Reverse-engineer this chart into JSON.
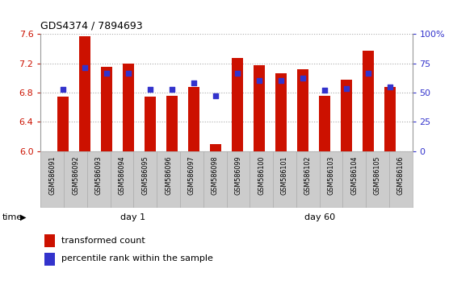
{
  "title": "GDS4374 / 7894693",
  "samples": [
    "GSM586091",
    "GSM586092",
    "GSM586093",
    "GSM586094",
    "GSM586095",
    "GSM586096",
    "GSM586097",
    "GSM586098",
    "GSM586099",
    "GSM586100",
    "GSM586101",
    "GSM586102",
    "GSM586103",
    "GSM586104",
    "GSM586105",
    "GSM586106"
  ],
  "red_values": [
    6.74,
    7.57,
    7.15,
    7.2,
    6.74,
    6.76,
    6.88,
    6.09,
    7.27,
    7.18,
    7.07,
    7.12,
    6.76,
    6.98,
    7.37,
    6.88
  ],
  "blue_values": [
    6.84,
    7.14,
    7.06,
    7.06,
    6.84,
    6.84,
    6.93,
    6.76,
    7.06,
    6.97,
    6.97,
    7.0,
    6.83,
    6.86,
    7.06,
    6.88
  ],
  "ymin": 6.0,
  "ymax": 7.6,
  "yticks_left": [
    6.0,
    6.4,
    6.8,
    7.2,
    7.6
  ],
  "yticks_right": [
    0,
    25,
    50,
    75,
    100
  ],
  "bar_color": "#cc1100",
  "blue_color": "#3333cc",
  "bar_width": 0.5,
  "day1_label": "day 1",
  "day60_label": "day 60",
  "day1_color": "#bbffbb",
  "day60_color": "#55ee55",
  "time_label": "time",
  "legend_red": "transformed count",
  "legend_blue": "percentile rank within the sample",
  "bg_color": "#ffffff",
  "tick_area_color": "#cccccc",
  "dotted_color": "#aaaaaa"
}
